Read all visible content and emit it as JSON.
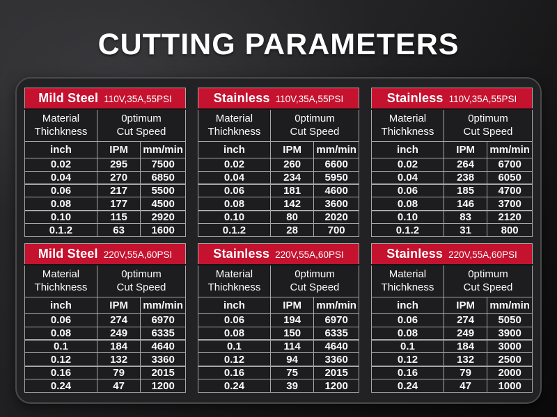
{
  "title": "CUTTING PARAMETERS",
  "colors": {
    "header_red": "#c5122f",
    "cell_bg": "#1d1d1f",
    "grid_border_gray": "#a8a8a8",
    "panel_bg": "#222224",
    "page_bg_dark": "#0a0a0b",
    "text_white": "#ffffff"
  },
  "table_labels": {
    "thickness_line1": "Material",
    "thickness_line2": "Thichkness",
    "speed_line1": "0ptimum",
    "speed_line2": "Cut Speed",
    "unit_inch": "inch",
    "unit_ipm": "IPM",
    "unit_mm": "mm/min"
  },
  "chart_data": [
    {
      "type": "table",
      "material": "Mild Steel",
      "spec": "110V,35A,55PSI",
      "column_groups": [
        "Material Thichkness",
        "0ptimum Cut Speed"
      ],
      "columns": [
        "inch",
        "IPM",
        "mm/min"
      ],
      "rows": [
        [
          "0.02",
          "295",
          "7500"
        ],
        [
          "0.04",
          "270",
          "6850"
        ],
        [
          "0.06",
          "217",
          "5500"
        ],
        [
          "0.08",
          "177",
          "4500"
        ],
        [
          "0.10",
          "115",
          "2920"
        ],
        [
          "0.1.2",
          "63",
          "1600"
        ]
      ]
    },
    {
      "type": "table",
      "material": "Stainless",
      "spec": "110V,35A,55PSI",
      "column_groups": [
        "Material Thichkness",
        "0ptimum Cut Speed"
      ],
      "columns": [
        "inch",
        "IPM",
        "mm/min"
      ],
      "rows": [
        [
          "0.02",
          "260",
          "6600"
        ],
        [
          "0.04",
          "234",
          "5950"
        ],
        [
          "0.06",
          "181",
          "4600"
        ],
        [
          "0.08",
          "142",
          "3600"
        ],
        [
          "0.10",
          "80",
          "2020"
        ],
        [
          "0.1.2",
          "28",
          "700"
        ]
      ]
    },
    {
      "type": "table",
      "material": "Stainless",
      "spec": "110V,35A,55PSI",
      "column_groups": [
        "Material Thichkness",
        "0ptimum Cut Speed"
      ],
      "columns": [
        "inch",
        "IPM",
        "mm/min"
      ],
      "rows": [
        [
          "0.02",
          "264",
          "6700"
        ],
        [
          "0.04",
          "238",
          "6050"
        ],
        [
          "0.06",
          "185",
          "4700"
        ],
        [
          "0.08",
          "146",
          "3700"
        ],
        [
          "0.10",
          "83",
          "2120"
        ],
        [
          "0.1.2",
          "31",
          "800"
        ]
      ]
    },
    {
      "type": "table",
      "material": "Mild Steel",
      "spec": "220V,55A,60PSI",
      "column_groups": [
        "Material Thichkness",
        "0ptimum Cut Speed"
      ],
      "columns": [
        "inch",
        "IPM",
        "mm/min"
      ],
      "rows": [
        [
          "0.06",
          "274",
          "6970"
        ],
        [
          "0.08",
          "249",
          "6335"
        ],
        [
          "0.1",
          "184",
          "4640"
        ],
        [
          "0.12",
          "132",
          "3360"
        ],
        [
          "0.16",
          "79",
          "2015"
        ],
        [
          "0.24",
          "47",
          "1200"
        ]
      ]
    },
    {
      "type": "table",
      "material": "Stainless",
      "spec": "220V,55A,60PSI",
      "column_groups": [
        "Material Thichkness",
        "0ptimum Cut Speed"
      ],
      "columns": [
        "inch",
        "IPM",
        "mm/min"
      ],
      "rows": [
        [
          "0.06",
          "194",
          "6970"
        ],
        [
          "0.08",
          "150",
          "6335"
        ],
        [
          "0.1",
          "114",
          "4640"
        ],
        [
          "0.12",
          "94",
          "3360"
        ],
        [
          "0.16",
          "75",
          "2015"
        ],
        [
          "0.24",
          "39",
          "1200"
        ]
      ]
    },
    {
      "type": "table",
      "material": "Stainless",
      "spec": "220V,55A,60PSI",
      "column_groups": [
        "Material Thichkness",
        "0ptimum Cut Speed"
      ],
      "columns": [
        "inch",
        "IPM",
        "mm/min"
      ],
      "rows": [
        [
          "0.06",
          "274",
          "5050"
        ],
        [
          "0.08",
          "249",
          "3900"
        ],
        [
          "0.1",
          "184",
          "3000"
        ],
        [
          "0.12",
          "132",
          "2500"
        ],
        [
          "0.16",
          "79",
          "2000"
        ],
        [
          "0.24",
          "47",
          "1000"
        ]
      ]
    }
  ]
}
